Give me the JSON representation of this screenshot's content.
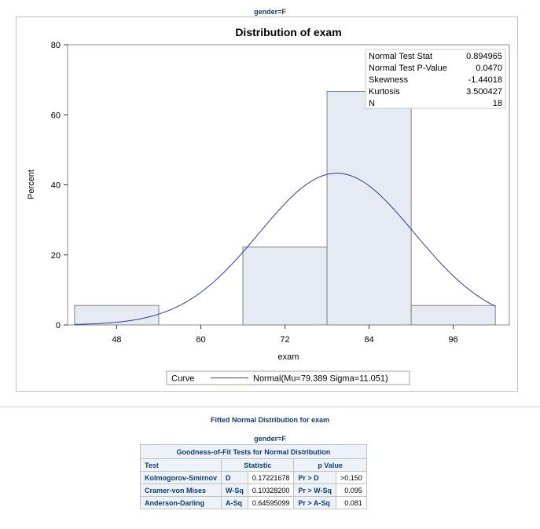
{
  "by_label_top": "gender=F",
  "by_label_bottom": "gender=F",
  "fit_section_title": "Fitted Normal Distribution for exam",
  "colors": {
    "bar_fill": "#e6eaf2",
    "bar_stroke": "#828282",
    "curve": "#2f3da0",
    "header_text": "#0e3d7a",
    "header_bg": "#edf2f9"
  },
  "stats_inset": [
    {
      "label": "Normal Test Stat",
      "value": "0.894965"
    },
    {
      "label": "Normal Test P-Value",
      "value": "0.0470"
    },
    {
      "label": "Skewness",
      "value": "-1.44018"
    },
    {
      "label": "Kurtosis",
      "value": "3.500427"
    },
    {
      "label": "N",
      "value": "18"
    }
  ],
  "legend": {
    "title": "Curve",
    "entry": "Normal(Mu=79.389 Sigma=11.051)"
  },
  "chart_data": {
    "type": "bar",
    "title": "Distribution of exam",
    "xlabel": "exam",
    "ylabel": "Percent",
    "bin_width": 12,
    "bin_midpoints": [
      48,
      60,
      72,
      84,
      96
    ],
    "values": [
      5.556,
      0,
      22.222,
      66.667,
      5.556
    ],
    "xlim": [
      41,
      104
    ],
    "ylim": [
      0,
      80
    ],
    "xticks": [
      48,
      60,
      72,
      84,
      96
    ],
    "yticks": [
      0,
      20,
      40,
      60,
      80
    ],
    "curve": {
      "type": "normal",
      "mu": 79.389,
      "sigma": 11.051,
      "x_range": [
        42,
        102
      ]
    },
    "grid": false,
    "legend_position": "bottom"
  },
  "gof_table": {
    "caption": "Goodness-of-Fit Tests for Normal Distribution",
    "headers": [
      "Test",
      "Statistic",
      "p Value"
    ],
    "rows": [
      {
        "test": "Kolmogorov-Smirnov",
        "stat_sym": "D",
        "stat": "0.17221678",
        "p_sym": "Pr > D",
        "p": ">0.150"
      },
      {
        "test": "Cramer-von Mises",
        "stat_sym": "W-Sq",
        "stat": "0.10328200",
        "p_sym": "Pr > W-Sq",
        "p": "0.095"
      },
      {
        "test": "Anderson-Darling",
        "stat_sym": "A-Sq",
        "stat": "0.64595099",
        "p_sym": "Pr > A-Sq",
        "p": "0.081"
      }
    ]
  }
}
